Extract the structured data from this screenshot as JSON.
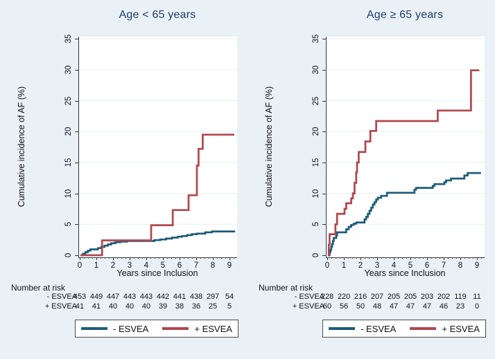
{
  "figure": {
    "background": "#e9f1f6",
    "plot_background": "#ffffff",
    "title_color": "#1f3d6d",
    "gridline_color": "#eef3f3"
  },
  "chart_data": [
    {
      "type": "line",
      "subtype": "step-cumulative-incidence",
      "title": "Age < 65 years",
      "xlabel": "Years since Inclusion",
      "ylabel": "Cumulative incidence of AF (%)",
      "xlim": [
        0,
        9.4
      ],
      "ylim": [
        0,
        35.5
      ],
      "xticks": [
        0,
        1,
        2,
        3,
        4,
        5,
        6,
        7,
        8,
        9
      ],
      "yticks": [
        0,
        5,
        10,
        15,
        20,
        25,
        30,
        35
      ],
      "grid": "horizontal",
      "legend_position": "bottom",
      "series": [
        {
          "name": "- ESVEA",
          "color": "#1d5c78",
          "x": [
            0,
            0.15,
            0.15,
            0.3,
            0.3,
            0.45,
            0.45,
            0.6,
            0.6,
            1.05,
            1.05,
            1.25,
            1.25,
            1.45,
            1.45,
            1.65,
            1.65,
            1.85,
            1.85,
            2.1,
            2.1,
            2.4,
            2.4,
            2.8,
            2.8,
            4.45,
            4.45,
            4.8,
            4.8,
            5.15,
            5.15,
            5.5,
            5.5,
            5.85,
            5.85,
            6.1,
            6.1,
            6.4,
            6.4,
            6.7,
            6.7,
            7.0,
            7.0,
            7.5,
            7.5,
            7.9,
            7.9,
            9.3
          ],
          "y": [
            0,
            0,
            0.25,
            0.25,
            0.5,
            0.5,
            0.75,
            0.75,
            0.95,
            0.95,
            1.15,
            1.15,
            1.35,
            1.35,
            1.55,
            1.55,
            1.75,
            1.75,
            1.95,
            1.95,
            2.1,
            2.1,
            2.2,
            2.2,
            2.3,
            2.3,
            2.45,
            2.45,
            2.55,
            2.55,
            2.7,
            2.7,
            2.85,
            2.85,
            3.0,
            3.0,
            3.1,
            3.1,
            3.25,
            3.25,
            3.4,
            3.4,
            3.5,
            3.5,
            3.7,
            3.7,
            3.85,
            3.85
          ]
        },
        {
          "name": "+ ESVEA",
          "color": "#b0474e",
          "x": [
            0,
            1.3,
            1.3,
            4.25,
            4.25,
            5.55,
            5.55,
            6.5,
            6.5,
            7.0,
            7.0,
            7.1,
            7.1,
            7.35,
            7.35,
            9.25
          ],
          "y": [
            0,
            0,
            2.4,
            2.4,
            4.85,
            4.85,
            7.3,
            7.3,
            9.7,
            9.7,
            14.5,
            14.5,
            17.2,
            17.2,
            19.5,
            19.5
          ]
        }
      ],
      "risk_table": {
        "header": "Number at risk",
        "times": [
          0,
          1,
          2,
          3,
          4,
          5,
          6,
          7,
          8,
          9
        ],
        "rows": [
          {
            "label": "- ESVEA",
            "values": [
              "453",
              "449",
              "447",
              "443",
              "443",
              "442",
              "441",
              "438",
              "297",
              "54"
            ]
          },
          {
            "label": "+ ESVEA",
            "values": [
              "41",
              "41",
              "40",
              "40",
              "40",
              "39",
              "38",
              "36",
              "25",
              "5"
            ]
          }
        ]
      }
    },
    {
      "type": "line",
      "subtype": "step-cumulative-incidence",
      "title": "Age ≥ 65 years",
      "xlabel": "Years since Inclusion",
      "ylabel": "Cumulative incidence of AF (%)",
      "xlim": [
        0,
        9.4
      ],
      "ylim": [
        0,
        35.5
      ],
      "xticks": [
        0,
        1,
        2,
        3,
        4,
        5,
        6,
        7,
        8,
        9
      ],
      "yticks": [
        0,
        5,
        10,
        15,
        20,
        25,
        30,
        35
      ],
      "grid": "horizontal",
      "legend_position": "bottom",
      "series": [
        {
          "name": "- ESVEA",
          "color": "#1d5c78",
          "x": [
            0,
            0.1,
            0.1,
            0.15,
            0.15,
            0.2,
            0.2,
            0.25,
            0.25,
            0.3,
            0.3,
            0.35,
            0.35,
            0.5,
            0.5,
            0.55,
            0.55,
            1.1,
            1.1,
            1.25,
            1.25,
            1.4,
            1.4,
            1.55,
            1.55,
            1.7,
            1.7,
            2.2,
            2.2,
            2.3,
            2.3,
            2.4,
            2.4,
            2.5,
            2.5,
            2.6,
            2.6,
            2.7,
            2.7,
            2.8,
            2.8,
            2.9,
            2.9,
            3.0,
            3.0,
            3.2,
            3.2,
            3.55,
            3.55,
            5.2,
            5.2,
            5.3,
            5.3,
            6.3,
            6.3,
            6.4,
            6.4,
            7.0,
            7.0,
            7.1,
            7.1,
            7.4,
            7.4,
            8.2,
            8.2,
            8.4,
            8.4,
            9.2
          ],
          "y": [
            0,
            0,
            0.5,
            0.5,
            0.9,
            0.9,
            1.4,
            1.4,
            1.8,
            1.8,
            2.3,
            2.3,
            2.8,
            2.8,
            3.2,
            3.2,
            3.7,
            3.7,
            4.2,
            4.2,
            4.6,
            4.6,
            4.9,
            4.9,
            5.1,
            5.1,
            5.3,
            5.3,
            5.8,
            5.8,
            6.2,
            6.2,
            6.7,
            6.7,
            7.2,
            7.2,
            7.7,
            7.7,
            8.2,
            8.2,
            8.6,
            8.6,
            9.0,
            9.0,
            9.3,
            9.3,
            9.6,
            9.6,
            10.1,
            10.1,
            10.6,
            10.6,
            10.9,
            10.9,
            11.2,
            11.2,
            11.5,
            11.5,
            11.8,
            11.8,
            12.1,
            12.1,
            12.4,
            12.4,
            12.9,
            12.9,
            13.3,
            13.3
          ]
        },
        {
          "name": "+ ESVEA",
          "color": "#b0474e",
          "x": [
            0,
            0.05,
            0.05,
            0.1,
            0.1,
            0.45,
            0.45,
            0.55,
            0.55,
            1.0,
            1.0,
            1.1,
            1.1,
            1.4,
            1.4,
            1.5,
            1.5,
            1.6,
            1.6,
            1.7,
            1.7,
            1.75,
            1.75,
            1.85,
            1.85,
            2.25,
            2.25,
            2.55,
            2.55,
            2.9,
            2.9,
            6.6,
            6.6,
            8.6,
            8.6,
            9.1
          ],
          "y": [
            0,
            0,
            1.7,
            1.7,
            3.4,
            3.4,
            5.0,
            5.0,
            6.7,
            6.7,
            7.5,
            7.5,
            8.4,
            8.4,
            9.2,
            9.2,
            10.0,
            10.0,
            11.7,
            11.7,
            13.4,
            13.4,
            15.0,
            15.0,
            16.7,
            16.7,
            18.4,
            18.4,
            20.1,
            20.1,
            21.7,
            21.7,
            23.4,
            23.4,
            29.9,
            29.9
          ]
        }
      ],
      "risk_table": {
        "header": "Number at risk",
        "times": [
          0,
          1,
          2,
          3,
          4,
          5,
          6,
          7,
          8,
          9
        ],
        "rows": [
          {
            "label": "- ESVEA",
            "values": [
              "228",
              "220",
              "216",
              "207",
              "205",
              "205",
              "203",
              "202",
              "119",
              "11"
            ]
          },
          {
            "label": "+ ESVEA",
            "values": [
              "60",
              "56",
              "50",
              "48",
              "47",
              "47",
              "47",
              "46",
              "23",
              "0"
            ]
          }
        ]
      }
    }
  ]
}
